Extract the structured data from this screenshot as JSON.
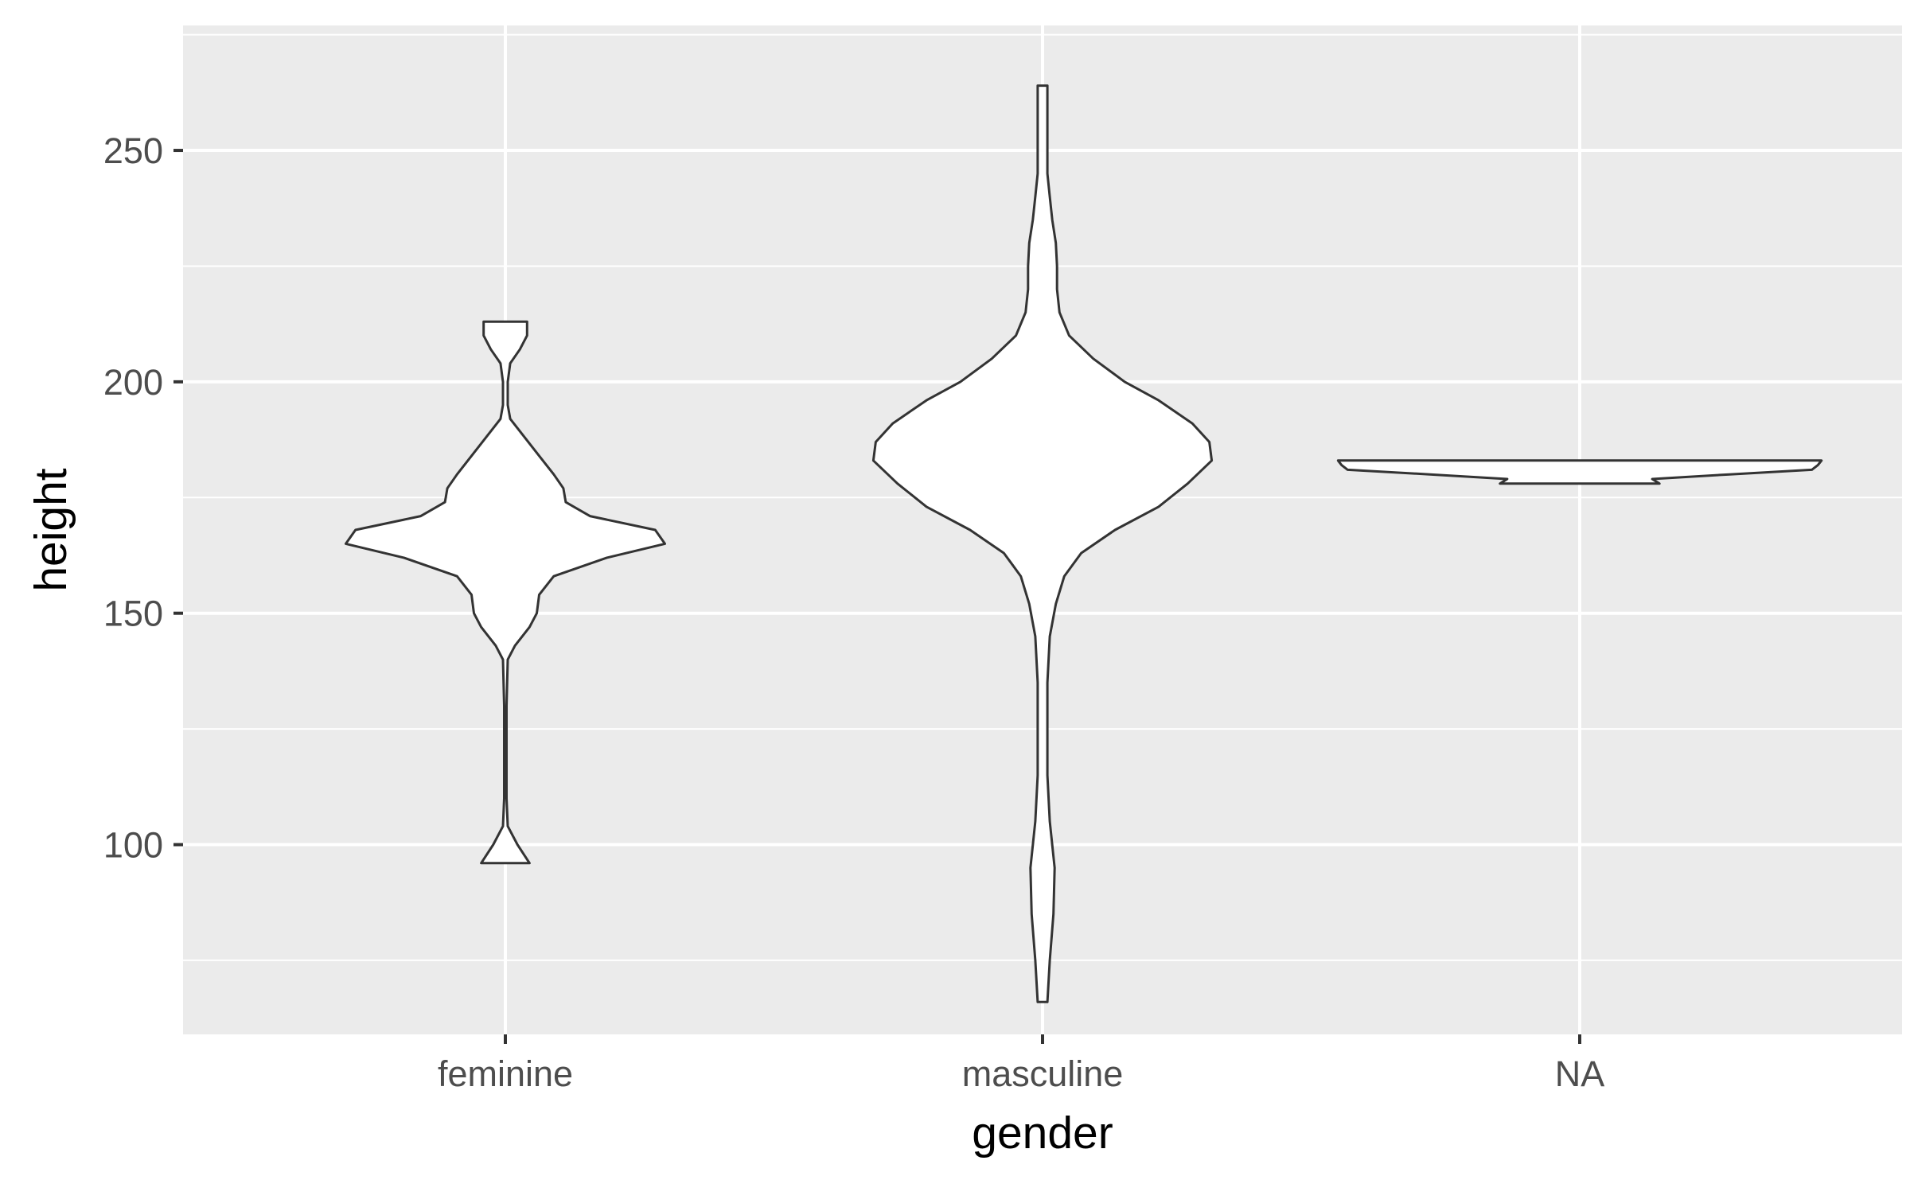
{
  "chart_data": {
    "type": "violin",
    "xlabel": "gender",
    "ylabel": "height",
    "categories": [
      "feminine",
      "masculine",
      "NA"
    ],
    "ylim": [
      59,
      277
    ],
    "yticks": [
      100,
      150,
      200,
      250
    ],
    "grid": true,
    "legend": "none",
    "colors": {
      "panel": "#ebebeb",
      "grid": "#ffffff",
      "violin_fill": "#ffffff",
      "violin_stroke": "#333333",
      "tick_label": "#4d4d4d",
      "axis_title": "#000000"
    },
    "violins": [
      {
        "category": "feminine",
        "min": 96,
        "max": 213,
        "profile": [
          [
            96,
            0.1
          ],
          [
            100,
            0.05
          ],
          [
            104,
            0.01
          ],
          [
            110,
            0.005
          ],
          [
            120,
            0.005
          ],
          [
            130,
            0.005
          ],
          [
            140,
            0.01
          ],
          [
            143,
            0.04
          ],
          [
            147,
            0.1
          ],
          [
            150,
            0.13
          ],
          [
            154,
            0.14
          ],
          [
            158,
            0.2
          ],
          [
            162,
            0.42
          ],
          [
            165,
            0.66
          ],
          [
            168,
            0.62
          ],
          [
            171,
            0.35
          ],
          [
            174,
            0.25
          ],
          [
            177,
            0.24
          ],
          [
            180,
            0.2
          ],
          [
            184,
            0.14
          ],
          [
            188,
            0.08
          ],
          [
            192,
            0.02
          ],
          [
            195,
            0.01
          ],
          [
            200,
            0.01
          ],
          [
            204,
            0.02
          ],
          [
            207,
            0.06
          ],
          [
            210,
            0.09
          ],
          [
            213,
            0.09
          ]
        ]
      },
      {
        "category": "masculine",
        "min": 66,
        "max": 264,
        "profile": [
          [
            66,
            0.02
          ],
          [
            75,
            0.03
          ],
          [
            85,
            0.045
          ],
          [
            95,
            0.05
          ],
          [
            105,
            0.03
          ],
          [
            115,
            0.02
          ],
          [
            125,
            0.02
          ],
          [
            135,
            0.02
          ],
          [
            145,
            0.03
          ],
          [
            152,
            0.055
          ],
          [
            158,
            0.09
          ],
          [
            163,
            0.16
          ],
          [
            168,
            0.3
          ],
          [
            173,
            0.48
          ],
          [
            178,
            0.6
          ],
          [
            183,
            0.7
          ],
          [
            187,
            0.69
          ],
          [
            191,
            0.62
          ],
          [
            196,
            0.48
          ],
          [
            200,
            0.34
          ],
          [
            205,
            0.21
          ],
          [
            210,
            0.11
          ],
          [
            215,
            0.07
          ],
          [
            220,
            0.06
          ],
          [
            225,
            0.06
          ],
          [
            230,
            0.055
          ],
          [
            235,
            0.04
          ],
          [
            240,
            0.03
          ],
          [
            245,
            0.02
          ],
          [
            250,
            0.02
          ],
          [
            255,
            0.02
          ],
          [
            260,
            0.02
          ],
          [
            264,
            0.02
          ]
        ]
      },
      {
        "category": "NA",
        "min": 178,
        "max": 183,
        "profile": [
          [
            178,
            0.33
          ],
          [
            179,
            0.3
          ],
          [
            180,
            0.62
          ],
          [
            181,
            0.96
          ],
          [
            182,
            0.985
          ],
          [
            183,
            1.0
          ]
        ]
      }
    ]
  }
}
